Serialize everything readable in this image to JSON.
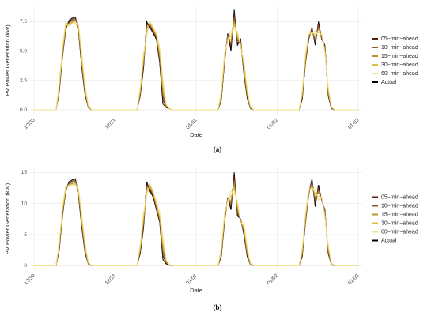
{
  "chart_data": [
    {
      "type": "line",
      "caption": "(a)",
      "xlabel": "Date",
      "ylabel": "PV Power Generation (kW)",
      "legend": "right",
      "grid": true,
      "x": [
        0,
        0.27,
        0.31,
        0.35,
        0.39,
        0.43,
        0.47,
        0.51,
        0.55,
        0.59,
        0.63,
        0.67,
        0.71,
        1,
        1.27,
        1.31,
        1.35,
        1.39,
        1.43,
        1.47,
        1.51,
        1.55,
        1.59,
        1.63,
        1.67,
        1.71,
        2,
        2.27,
        2.31,
        2.35,
        2.39,
        2.43,
        2.47,
        2.51,
        2.55,
        2.59,
        2.63,
        2.67,
        2.71,
        3,
        3.27,
        3.31,
        3.35,
        3.39,
        3.43,
        3.47,
        3.51,
        3.55,
        3.59,
        3.63,
        3.67,
        3.71,
        4
      ],
      "xlim": [
        -0.05,
        4.05
      ],
      "xticks": [
        {
          "value": 0,
          "label": "12/30"
        },
        {
          "value": 1,
          "label": "12/31"
        },
        {
          "value": 2,
          "label": "01/01"
        },
        {
          "value": 3,
          "label": "01/02"
        },
        {
          "value": 4,
          "label": "01/03"
        }
      ],
      "ylim": [
        -0.4,
        8.8
      ],
      "yticks": [
        {
          "value": 0,
          "label": "0.0"
        },
        {
          "value": 2.5,
          "label": "2.5"
        },
        {
          "value": 5,
          "label": "5.0"
        },
        {
          "value": 7.5,
          "label": "7.5"
        }
      ],
      "series": [
        {
          "name": "05−min−ahead",
          "color": "#5a1f14",
          "values": [
            0,
            0,
            1.6,
            4.6,
            6.9,
            7.5,
            7.7,
            7.8,
            6.6,
            3.6,
            1.3,
            0.2,
            0,
            0,
            0,
            1.3,
            3.7,
            7.3,
            7.1,
            6.6,
            6.1,
            4.2,
            0.9,
            0.2,
            0.1,
            0,
            0,
            0,
            0.9,
            4.1,
            6.4,
            5.3,
            8.2,
            5.7,
            5.9,
            3.1,
            1.1,
            0.1,
            0,
            0,
            0,
            1.0,
            4.1,
            6.1,
            6.9,
            5.7,
            7.3,
            6.1,
            5.4,
            1.3,
            0.1,
            0,
            0
          ]
        },
        {
          "name": "10−min−ahead",
          "color": "#8c5a2a",
          "values": [
            0,
            0,
            1.7,
            4.7,
            7.0,
            7.4,
            7.6,
            7.7,
            6.7,
            3.8,
            1.4,
            0.2,
            0,
            0,
            0,
            1.4,
            3.9,
            7.1,
            7.2,
            6.7,
            6.2,
            4.4,
            1.2,
            0.3,
            0.1,
            0,
            0,
            0,
            1.0,
            4.2,
            6.3,
            5.6,
            7.9,
            5.9,
            5.8,
            3.3,
            1.2,
            0.1,
            0,
            0,
            0,
            1.1,
            4.2,
            6.2,
            6.8,
            5.9,
            7.1,
            6.2,
            5.3,
            1.4,
            0.1,
            0,
            0
          ]
        },
        {
          "name": "15−min−ahead",
          "color": "#b5902d",
          "values": [
            0,
            0,
            1.8,
            4.8,
            7.1,
            7.3,
            7.5,
            7.6,
            6.8,
            4.0,
            1.5,
            0.3,
            0,
            0,
            0,
            1.5,
            4.1,
            6.9,
            7.3,
            6.8,
            6.3,
            4.6,
            1.5,
            0.3,
            0.1,
            0,
            0,
            0,
            1.1,
            4.3,
            6.2,
            5.9,
            7.6,
            6.1,
            5.7,
            3.5,
            1.3,
            0.2,
            0,
            0,
            0,
            1.2,
            4.3,
            6.3,
            6.7,
            6.1,
            6.9,
            6.3,
            5.2,
            1.5,
            0.2,
            0,
            0
          ]
        },
        {
          "name": "30−min−ahead",
          "color": "#d9c14a",
          "values": [
            0,
            0,
            2.0,
            5.0,
            7.3,
            7.2,
            7.4,
            7.5,
            7.0,
            4.3,
            1.7,
            0.3,
            0,
            0,
            0,
            1.7,
            4.4,
            6.6,
            7.4,
            6.9,
            6.4,
            4.9,
            2.0,
            0.4,
            0.1,
            0,
            0,
            0,
            1.3,
            4.5,
            6.0,
            6.3,
            7.2,
            6.4,
            5.5,
            3.8,
            1.5,
            0.2,
            0,
            0,
            0,
            1.4,
            4.5,
            6.4,
            6.6,
            6.4,
            6.6,
            6.4,
            5.0,
            1.7,
            0.2,
            0,
            0
          ]
        },
        {
          "name": "60−min−ahead",
          "color": "#f3e08a",
          "values": [
            0,
            0,
            2.3,
            5.3,
            7.5,
            7.1,
            7.3,
            7.4,
            7.2,
            4.7,
            2.0,
            0.4,
            0,
            0,
            0,
            2.0,
            4.8,
            6.3,
            7.5,
            7.0,
            6.5,
            5.3,
            2.6,
            0.5,
            0.1,
            0,
            0,
            0,
            1.6,
            4.8,
            5.8,
            6.7,
            6.8,
            6.7,
            5.3,
            4.2,
            1.8,
            0.3,
            0,
            0,
            0,
            1.7,
            4.8,
            6.5,
            6.5,
            6.7,
            6.3,
            6.5,
            4.8,
            2.0,
            0.3,
            0,
            0
          ]
        },
        {
          "name": "Actual",
          "color": "#000000",
          "values": [
            0,
            0,
            1.5,
            4.5,
            6.8,
            7.6,
            7.8,
            7.9,
            6.5,
            3.5,
            1.2,
            0.2,
            0,
            0,
            0,
            1.2,
            3.5,
            7.5,
            7.0,
            6.5,
            6.0,
            4.0,
            0.5,
            0.2,
            0.1,
            0,
            0,
            0,
            0.8,
            4.0,
            6.5,
            5.0,
            8.5,
            5.5,
            6.0,
            3.0,
            1.0,
            0.1,
            0,
            0,
            0,
            0.9,
            4.0,
            6.0,
            7.0,
            5.5,
            7.5,
            6.0,
            5.5,
            1.2,
            0.1,
            0,
            0
          ]
        }
      ]
    },
    {
      "type": "line",
      "caption": "(b)",
      "xlabel": "Date",
      "ylabel": "PV Power Generation (kW)",
      "legend": "right",
      "grid": true,
      "x": [
        0,
        0.27,
        0.31,
        0.35,
        0.39,
        0.43,
        0.47,
        0.51,
        0.55,
        0.59,
        0.63,
        0.67,
        0.71,
        1,
        1.27,
        1.31,
        1.35,
        1.39,
        1.43,
        1.47,
        1.51,
        1.55,
        1.59,
        1.63,
        1.67,
        1.71,
        2,
        2.27,
        2.31,
        2.35,
        2.39,
        2.43,
        2.47,
        2.51,
        2.55,
        2.59,
        2.63,
        2.67,
        2.71,
        3,
        3.27,
        3.31,
        3.35,
        3.39,
        3.43,
        3.47,
        3.51,
        3.55,
        3.59,
        3.63,
        3.67,
        3.71,
        4
      ],
      "xlim": [
        -0.05,
        4.05
      ],
      "xticks": [
        {
          "value": 0,
          "label": "12/30"
        },
        {
          "value": 1,
          "label": "12/31"
        },
        {
          "value": 2,
          "label": "01/01"
        },
        {
          "value": 3,
          "label": "01/02"
        },
        {
          "value": 4,
          "label": "01/03"
        }
      ],
      "ylim": [
        -0.7,
        15.8
      ],
      "yticks": [
        0,
        5,
        10,
        15
      ],
      "series": [
        {
          "name": "05−min−ahead",
          "color": "#5a1f14",
          "values": [
            0,
            0,
            2.7,
            8.2,
            12.1,
            13.3,
            13.6,
            13.8,
            11.2,
            6.3,
            2.2,
            0.3,
            0,
            0,
            0,
            2.2,
            6.4,
            13.1,
            12.2,
            11.2,
            9.2,
            7.2,
            1.6,
            0.4,
            0.1,
            0,
            0,
            0,
            1.7,
            7.2,
            10.9,
            9.5,
            14.4,
            8.4,
            7.4,
            5.2,
            1.7,
            0.2,
            0,
            0,
            0,
            1.7,
            7.2,
            11.6,
            13.7,
            10.0,
            12.6,
            10.6,
            8.8,
            2.2,
            0.2,
            0,
            0
          ]
        },
        {
          "name": "10−min−ahead",
          "color": "#8c5a2a",
          "values": [
            0,
            0,
            2.9,
            8.4,
            12.2,
            13.2,
            13.4,
            13.6,
            11.4,
            6.6,
            2.4,
            0.3,
            0,
            0,
            0,
            2.4,
            6.8,
            12.7,
            12.4,
            11.4,
            9.4,
            7.4,
            2.2,
            0.5,
            0.1,
            0,
            0,
            0,
            1.9,
            7.4,
            10.8,
            10.0,
            13.8,
            8.8,
            7.3,
            5.5,
            1.9,
            0.2,
            0,
            0,
            0,
            1.9,
            7.4,
            11.7,
            13.4,
            10.5,
            12.2,
            10.7,
            8.6,
            2.4,
            0.2,
            0,
            0
          ]
        },
        {
          "name": "15−min−ahead",
          "color": "#b5902d",
          "values": [
            0,
            0,
            3.1,
            8.6,
            12.3,
            13.1,
            13.2,
            13.4,
            11.6,
            6.9,
            2.6,
            0.4,
            0,
            0,
            0,
            2.6,
            7.2,
            12.3,
            12.6,
            11.6,
            9.6,
            7.6,
            2.8,
            0.6,
            0.1,
            0,
            0,
            0,
            2.1,
            7.6,
            10.7,
            10.5,
            13.2,
            9.2,
            7.2,
            5.8,
            2.1,
            0.3,
            0,
            0,
            0,
            2.1,
            7.6,
            11.8,
            13.1,
            11.0,
            11.8,
            10.8,
            8.4,
            2.6,
            0.3,
            0,
            0
          ]
        },
        {
          "name": "30−min−ahead",
          "color": "#d9c14a",
          "values": [
            0,
            0,
            3.4,
            9.0,
            12.5,
            13.0,
            13.0,
            13.2,
            11.9,
            7.4,
            3.0,
            0.5,
            0,
            0,
            0,
            3.0,
            7.8,
            11.8,
            12.9,
            11.8,
            9.9,
            8.0,
            3.6,
            0.8,
            0.2,
            0,
            0,
            0,
            2.4,
            8.0,
            10.5,
            11.2,
            12.4,
            9.8,
            7.0,
            6.3,
            2.5,
            0.4,
            0,
            0,
            0,
            2.4,
            8.0,
            12.0,
            12.7,
            11.6,
            11.2,
            11.0,
            8.1,
            3.0,
            0.4,
            0,
            0
          ]
        },
        {
          "name": "60−min−ahead",
          "color": "#f3e08a",
          "values": [
            0,
            0,
            3.9,
            9.5,
            12.8,
            12.8,
            12.8,
            13.0,
            12.3,
            8.1,
            3.5,
            0.6,
            0,
            0,
            0,
            3.5,
            8.5,
            11.2,
            13.2,
            12.0,
            10.3,
            8.6,
            4.6,
            1.0,
            0.2,
            0,
            0,
            0,
            2.9,
            8.5,
            10.3,
            12.0,
            11.6,
            10.5,
            6.8,
            7.0,
            3.0,
            0.5,
            0,
            0,
            0,
            2.9,
            8.5,
            12.2,
            12.3,
            12.3,
            10.6,
            11.2,
            7.7,
            3.5,
            0.5,
            0,
            0
          ]
        },
        {
          "name": "Actual",
          "color": "#000000",
          "values": [
            0,
            0,
            2.5,
            8.0,
            12.0,
            13.5,
            13.8,
            14.0,
            11.0,
            6.0,
            2.0,
            0.3,
            0,
            0,
            0,
            2.0,
            6.0,
            13.5,
            12.0,
            11.0,
            9.0,
            7.0,
            1.0,
            0.3,
            0.1,
            0,
            0,
            0,
            1.5,
            7.0,
            11.0,
            9.0,
            15.0,
            8.0,
            7.5,
            5.0,
            1.5,
            0.2,
            0,
            0,
            0,
            1.5,
            7.0,
            11.5,
            14.0,
            9.5,
            13.0,
            10.5,
            9.0,
            2.0,
            0.2,
            0,
            0
          ]
        }
      ]
    }
  ]
}
